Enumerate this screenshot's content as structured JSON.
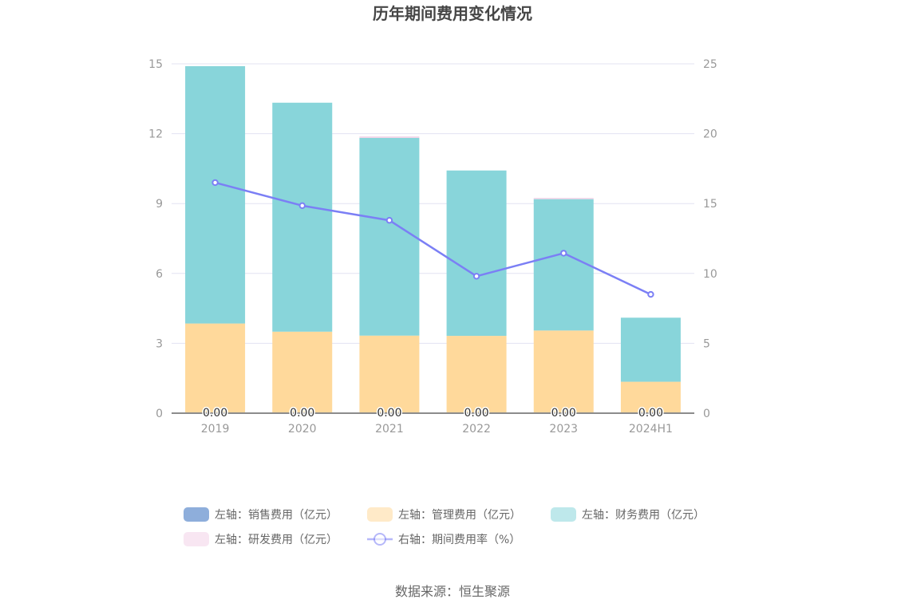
{
  "chart_data": {
    "type": "bar",
    "title": "历年期间费用变化情况",
    "categories": [
      "2019",
      "2020",
      "2021",
      "2022",
      "2023",
      "2024H1"
    ],
    "left_axis": {
      "min": 0,
      "max": 15,
      "ticks": [
        0,
        3,
        6,
        9,
        12,
        15
      ]
    },
    "right_axis": {
      "min": 0,
      "max": 25,
      "ticks": [
        0,
        5,
        10,
        15,
        20,
        25
      ]
    },
    "series": [
      {
        "name": "左轴：销售费用（亿元）",
        "type": "bar",
        "axis": "left",
        "stack": true,
        "color": "#8eaedb",
        "values": [
          0,
          0,
          0,
          0,
          0,
          0
        ],
        "data_labels": [
          "0.00",
          "0.00",
          "0.00",
          "0.00",
          "0.00",
          "0.00"
        ]
      },
      {
        "name": "左轴：管理费用（亿元）",
        "type": "bar",
        "axis": "left",
        "stack": true,
        "color": "#ffd99b",
        "values": [
          3.85,
          3.5,
          3.33,
          3.32,
          3.55,
          1.35
        ]
      },
      {
        "name": "左轴：财务费用（亿元）",
        "type": "bar",
        "axis": "left",
        "stack": true,
        "color": "#88d5da",
        "values": [
          11.05,
          9.83,
          8.49,
          7.1,
          5.64,
          2.75
        ]
      },
      {
        "name": "左轴：研发费用（亿元）",
        "type": "bar",
        "axis": "left",
        "stack": true,
        "color": "#f2d2e8",
        "values": [
          0,
          0,
          0.06,
          0,
          0.05,
          0
        ]
      },
      {
        "name": "右轴：期间费用率（%）",
        "type": "line",
        "axis": "right",
        "color": "#7b7ff5",
        "values": [
          16.5,
          14.85,
          13.8,
          9.8,
          11.45,
          8.5
        ]
      }
    ],
    "legend_position": "bottom",
    "grid": true
  },
  "source": "数据来源：恒生聚源"
}
